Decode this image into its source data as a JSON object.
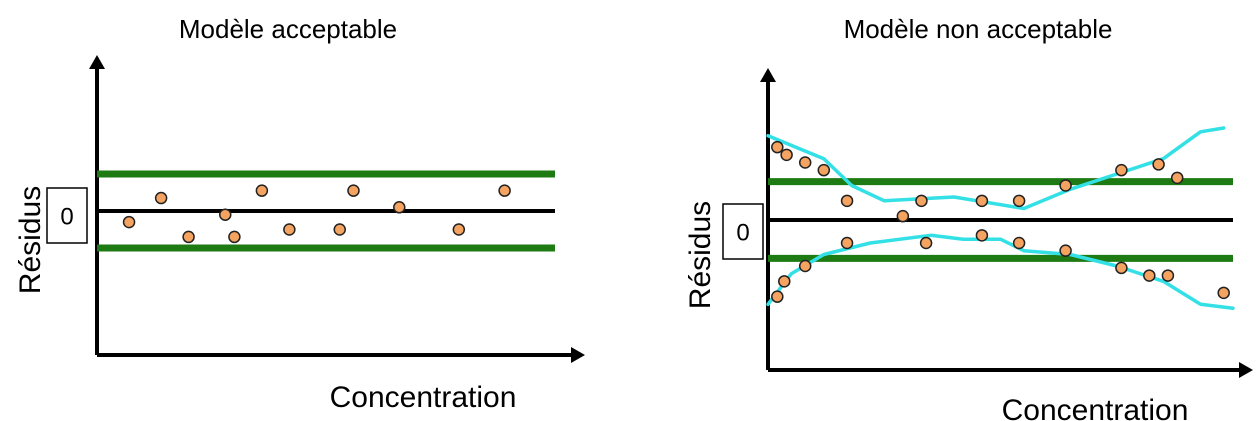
{
  "colors": {
    "axis": "#000000",
    "limit_band": "#1e7a12",
    "points_fill": "#f4a460",
    "points_stroke": "#222222",
    "trend": "#33e0e6"
  },
  "chart_data": [
    {
      "type": "scatter",
      "title": "Modèle acceptable",
      "xlabel": "Concentration",
      "ylabel": "Résidus",
      "zero_label": "0",
      "xlim": [
        0,
        10
      ],
      "ylim": [
        -3,
        3
      ],
      "limit_lines": [
        1,
        -1
      ],
      "points": [
        [
          0.7,
          -0.3
        ],
        [
          1.4,
          0.35
        ],
        [
          2.0,
          -0.7
        ],
        [
          2.8,
          -0.1
        ],
        [
          3.0,
          -0.7
        ],
        [
          3.6,
          0.55
        ],
        [
          4.2,
          -0.5
        ],
        [
          5.3,
          -0.5
        ],
        [
          5.6,
          0.55
        ],
        [
          6.6,
          0.1
        ],
        [
          7.9,
          -0.5
        ],
        [
          8.9,
          0.55
        ]
      ],
      "trend_lines": []
    },
    {
      "type": "scatter",
      "title": "Modèle non  acceptable",
      "xlabel": "Concentration",
      "ylabel": "Résidus",
      "zero_label": "0",
      "xlim": [
        0,
        10
      ],
      "ylim": [
        -3,
        3
      ],
      "limit_lines": [
        1,
        -1
      ],
      "points": [
        [
          0.2,
          1.9
        ],
        [
          0.4,
          1.7
        ],
        [
          0.8,
          1.5
        ],
        [
          1.2,
          1.3
        ],
        [
          1.7,
          0.5
        ],
        [
          2.9,
          0.1
        ],
        [
          3.3,
          0.5
        ],
        [
          4.6,
          0.5
        ],
        [
          5.4,
          0.5
        ],
        [
          6.4,
          0.9
        ],
        [
          7.6,
          1.3
        ],
        [
          8.4,
          1.45
        ],
        [
          8.8,
          1.1
        ],
        [
          0.2,
          -2.0
        ],
        [
          0.35,
          -1.6
        ],
        [
          0.8,
          -1.2
        ],
        [
          1.7,
          -0.6
        ],
        [
          3.4,
          -0.6
        ],
        [
          4.6,
          -0.4
        ],
        [
          5.4,
          -0.6
        ],
        [
          6.4,
          -0.8
        ],
        [
          7.6,
          -1.25
        ],
        [
          8.2,
          -1.45
        ],
        [
          8.6,
          -1.45
        ],
        [
          9.8,
          -1.9
        ]
      ],
      "trend_lines": [
        [
          [
            0.0,
            2.2
          ],
          [
            1.2,
            1.6
          ],
          [
            1.8,
            0.9
          ],
          [
            2.5,
            0.5
          ],
          [
            4.0,
            0.6
          ],
          [
            5.5,
            0.3
          ],
          [
            6.5,
            0.8
          ],
          [
            7.5,
            1.2
          ],
          [
            8.5,
            1.6
          ],
          [
            9.3,
            2.3
          ],
          [
            9.8,
            2.4
          ]
        ],
        [
          [
            0.0,
            -2.2
          ],
          [
            0.5,
            -1.4
          ],
          [
            1.2,
            -0.9
          ],
          [
            2.2,
            -0.6
          ],
          [
            3.5,
            -0.4
          ],
          [
            4.2,
            -0.5
          ],
          [
            5.0,
            -0.5
          ],
          [
            5.5,
            -0.8
          ],
          [
            6.5,
            -0.9
          ],
          [
            7.5,
            -1.2
          ],
          [
            8.5,
            -1.6
          ],
          [
            9.3,
            -2.2
          ],
          [
            10.0,
            -2.3
          ]
        ]
      ]
    }
  ]
}
